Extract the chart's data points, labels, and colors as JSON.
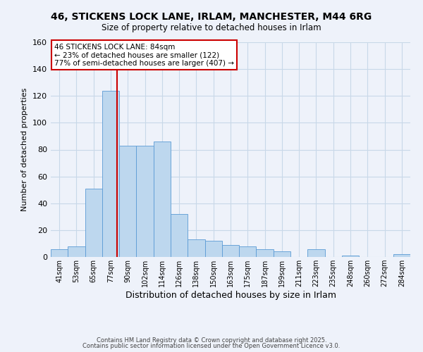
{
  "title_line1": "46, STICKENS LOCK LANE, IRLAM, MANCHESTER, M44 6RG",
  "title_line2": "Size of property relative to detached houses in Irlam",
  "xlabel": "Distribution of detached houses by size in Irlam",
  "ylabel": "Number of detached properties",
  "bin_labels": [
    "41sqm",
    "53sqm",
    "65sqm",
    "77sqm",
    "90sqm",
    "102sqm",
    "114sqm",
    "126sqm",
    "138sqm",
    "150sqm",
    "163sqm",
    "175sqm",
    "187sqm",
    "199sqm",
    "211sqm",
    "223sqm",
    "235sqm",
    "248sqm",
    "260sqm",
    "272sqm",
    "284sqm"
  ],
  "bar_heights": [
    6,
    8,
    51,
    124,
    83,
    83,
    86,
    32,
    13,
    12,
    9,
    8,
    6,
    4,
    0,
    6,
    0,
    1,
    0,
    0,
    2
  ],
  "bar_color": "#bdd7ee",
  "bar_edge_color": "#5b9bd5",
  "grid_color": "#c8d8e8",
  "background_color": "#eef2fa",
  "vline_x": 3.85,
  "vline_color": "#cc0000",
  "annotation_line1": "46 STICKENS LOCK LANE: 84sqm",
  "annotation_line2": "← 23% of detached houses are smaller (122)",
  "annotation_line3": "77% of semi-detached houses are larger (407) →",
  "annotation_box_color": "#ffffff",
  "annotation_border_color": "#cc0000",
  "ylim": [
    0,
    160
  ],
  "yticks": [
    0,
    20,
    40,
    60,
    80,
    100,
    120,
    140,
    160
  ],
  "footer_line1": "Contains HM Land Registry data © Crown copyright and database right 2025.",
  "footer_line2": "Contains public sector information licensed under the Open Government Licence v3.0."
}
